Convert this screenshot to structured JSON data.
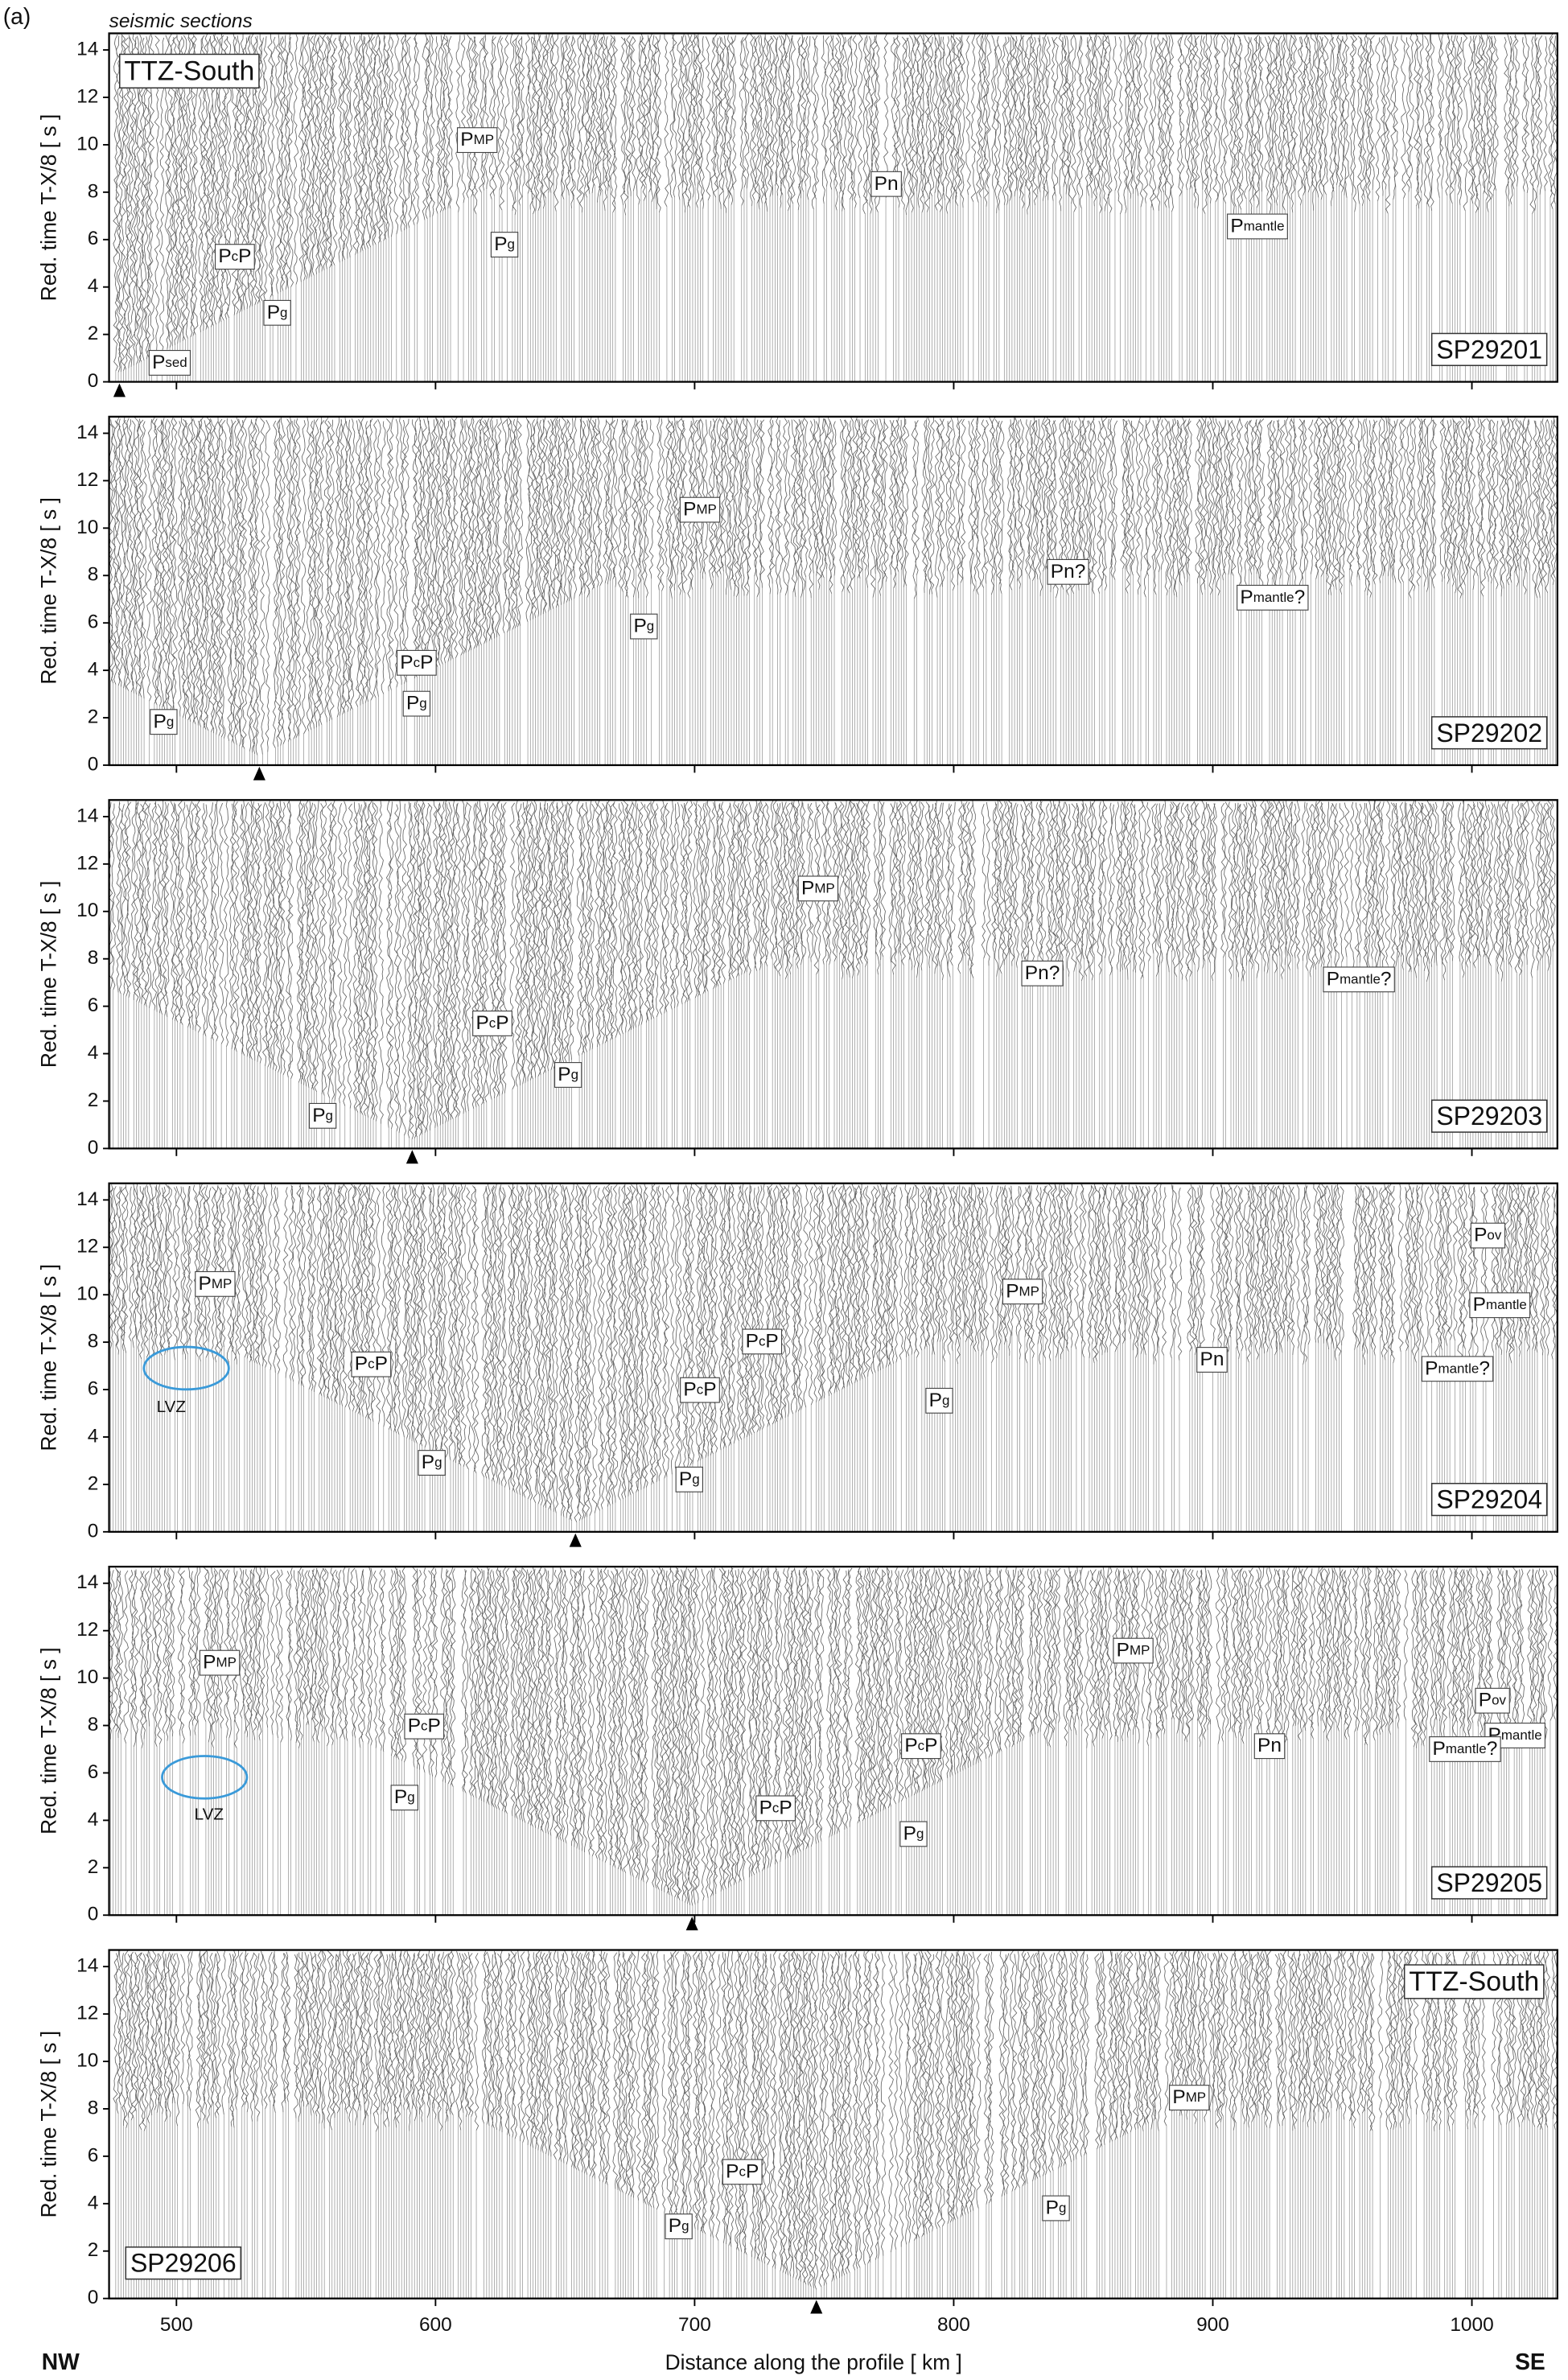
{
  "figure_label": "(a)",
  "subtitle": "seismic sections",
  "y_axis_label": "Red. time  T-X/8   [ s ]",
  "x_axis_label": "Distance along the profile   [ km ]",
  "left_end": "NW",
  "right_end": "SE",
  "chart_data": [
    {
      "type": "seismic-section",
      "region_label": "TTZ-South",
      "shot_point_name": "SP29201",
      "shot_point": 478,
      "xlim": [
        474,
        1033
      ],
      "ylim": [
        0,
        14.7
      ],
      "xticks": [
        500,
        600,
        700,
        800,
        900,
        1000
      ],
      "yticks": [
        0,
        2,
        4,
        6,
        8,
        10,
        12,
        14
      ],
      "phase_labels": [
        [
          "P",
          "MP"
        ],
        [
          "P",
          "c",
          "P"
        ],
        [
          "P",
          "g"
        ],
        [
          "P",
          "sed"
        ],
        [
          "P",
          "g"
        ],
        [
          "Pn"
        ],
        [
          "P",
          "mantle"
        ]
      ]
    },
    {
      "type": "seismic-section",
      "shot_point_name": "SP29202",
      "shot_point": 532,
      "xlim": [
        474,
        1033
      ],
      "ylim": [
        0,
        14.7
      ],
      "xticks": [
        500,
        600,
        700,
        800,
        900,
        1000
      ],
      "yticks": [
        0,
        2,
        4,
        6,
        8,
        10,
        12,
        14
      ],
      "phase_labels": [
        [
          "P",
          "g"
        ],
        [
          "P",
          "c",
          "P"
        ],
        [
          "P",
          "g"
        ],
        [
          "P",
          "MP"
        ],
        [
          "P",
          "g"
        ],
        [
          "Pn?"
        ],
        [
          "P",
          "mantle",
          "?"
        ]
      ]
    },
    {
      "type": "seismic-section",
      "shot_point_name": "SP29203",
      "shot_point": 591,
      "xlim": [
        474,
        1033
      ],
      "ylim": [
        0,
        14.7
      ],
      "xticks": [
        500,
        600,
        700,
        800,
        900,
        1000
      ],
      "yticks": [
        0,
        2,
        4,
        6,
        8,
        10,
        12,
        14
      ],
      "phase_labels": [
        [
          "P",
          "g"
        ],
        [
          "P",
          "c",
          "P"
        ],
        [
          "P",
          "g"
        ],
        [
          "P",
          "MP"
        ],
        [
          "Pn?"
        ],
        [
          "P",
          "mantle",
          "?"
        ]
      ]
    },
    {
      "type": "seismic-section",
      "shot_point_name": "SP29204",
      "shot_point": 654,
      "xlim": [
        474,
        1033
      ],
      "ylim": [
        0,
        14.7
      ],
      "xticks": [
        500,
        600,
        700,
        800,
        900,
        1000
      ],
      "yticks": [
        0,
        2,
        4,
        6,
        8,
        10,
        12,
        14
      ],
      "zone_label": "LVZ",
      "phase_labels": [
        [
          "P",
          "MP"
        ],
        [
          "P",
          "c",
          "P"
        ],
        [
          "P",
          "g"
        ],
        [
          "P",
          "c",
          "P"
        ],
        [
          "P",
          "g"
        ],
        [
          "P",
          "c",
          "P"
        ],
        [
          "P",
          "MP"
        ],
        [
          "P",
          "g"
        ],
        [
          "Pn"
        ],
        [
          "P",
          "ov"
        ],
        [
          "P",
          "mantle"
        ],
        [
          "P",
          "mantle",
          "?"
        ]
      ]
    },
    {
      "type": "seismic-section",
      "shot_point_name": "SP29205",
      "shot_point": 699,
      "xlim": [
        474,
        1033
      ],
      "ylim": [
        0,
        14.7
      ],
      "xticks": [
        500,
        600,
        700,
        800,
        900,
        1000
      ],
      "yticks": [
        0,
        2,
        4,
        6,
        8,
        10,
        12,
        14
      ],
      "zone_label": "LVZ",
      "phase_labels": [
        [
          "P",
          "MP"
        ],
        [
          "P",
          "c",
          "P"
        ],
        [
          "P",
          "g"
        ],
        [
          "P",
          "c",
          "P"
        ],
        [
          "P",
          "c",
          "P"
        ],
        [
          "P",
          "g"
        ],
        [
          "P",
          "MP"
        ],
        [
          "Pn"
        ],
        [
          "P",
          "ov"
        ],
        [
          "P",
          "mantle"
        ],
        [
          "P",
          "mantle",
          "?"
        ]
      ]
    },
    {
      "type": "seismic-section",
      "region_label": "TTZ-South",
      "shot_point_name": "SP29206",
      "shot_point": 747,
      "xlim": [
        474,
        1033
      ],
      "ylim": [
        0,
        14.7
      ],
      "xticks": [
        500,
        600,
        700,
        800,
        900,
        1000
      ],
      "yticks": [
        0,
        2,
        4,
        6,
        8,
        10,
        12,
        14
      ],
      "phase_labels": [
        [
          "P",
          "MP"
        ],
        [
          "P",
          "c",
          "P"
        ],
        [
          "P",
          "g"
        ],
        [
          "P",
          "g"
        ]
      ]
    }
  ]
}
